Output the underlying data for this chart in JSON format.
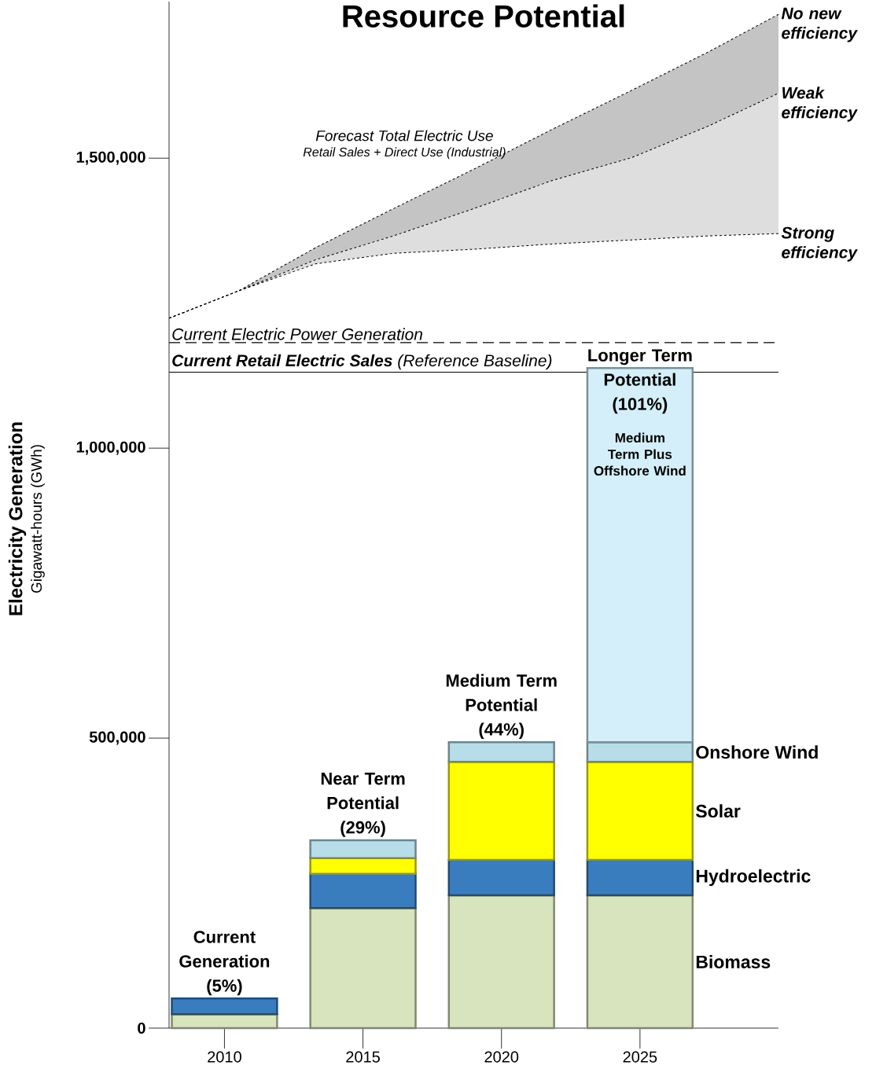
{
  "chart_data": {
    "type": "bar",
    "title": "Resource Potential",
    "ylabel": "Electricity Generation",
    "x": [
      2010,
      2015,
      2020,
      2025
    ],
    "series": [
      {
        "name": "No new efficiency",
        "type": "line",
        "color": "#000000",
        "line_style": "dashed",
        "x": [
          2008,
          2010.5,
          2013.3,
          2016.1,
          2019,
          2021.8,
          2024.7,
          2027.5,
          2030
        ],
        "values": [
          1224000,
          1271000,
          1346000,
          1413000,
          1481000,
          1549000,
          1617000,
          1684000,
          1748000
        ]
      },
      {
        "name": "Weak efficiency",
        "type": "line",
        "color": "#000000",
        "line_style": "dashed",
        "x": [
          2008,
          2010.5,
          2013.3,
          2016.1,
          2019,
          2021.8,
          2024.7,
          2027.5,
          2030
        ],
        "values": [
          1224000,
          1271000,
          1325000,
          1366000,
          1413000,
          1461000,
          1501000,
          1556000,
          1612000
        ]
      },
      {
        "name": "Strong efficiency",
        "type": "line",
        "color": "#000000",
        "line_style": "dashed",
        "x": [
          2008,
          2010.5,
          2013.3,
          2016.1,
          2019,
          2021.8,
          2024.7,
          2027.5,
          2030
        ],
        "values": [
          1224000,
          1271000,
          1318000,
          1336000,
          1343000,
          1352000,
          1359000,
          1366000,
          1370000
        ]
      },
      {
        "name": "Biomass",
        "color": "#d7e4bd",
        "values": [
          24000,
          207000,
          229000,
          229000
        ]
      },
      {
        "name": "Hydroelectric",
        "color": "#3a7dbf",
        "values": [
          27000,
          59000,
          61000,
          61000
        ]
      },
      {
        "name": "Solar",
        "color": "#ffff00",
        "values": [
          null,
          27000,
          169000,
          169000
        ]
      },
      {
        "name": "Onshore Wind",
        "color": "#b7dde8",
        "values": [
          null,
          31000,
          34000,
          34000
        ]
      },
      {
        "color": "#d4eff9",
        "values": [
          null,
          null,
          null,
          645000
        ]
      }
    ],
    "xlim": [
      2008,
      2030
    ],
    "ylim": [
      0,
      1770000
    ],
    "xticks": [
      2010,
      2015,
      2020,
      2025
    ],
    "yticks": [
      0,
      {
        "value": 500000,
        "label": "500,000"
      },
      {
        "value": 1000000,
        "label": "1,000,000"
      },
      {
        "value": 1500000,
        "label": "1,500,000"
      }
    ],
    "ref_lines": [
      {
        "axis": "y",
        "value": 1182000,
        "label": "Current Electric Power Generation",
        "line_style": "dashed"
      },
      {
        "axis": "y",
        "value": 1131000,
        "label": "**Current Retail Electric Sales** (Reference Baseline)",
        "line_style": "solid"
      }
    ],
    "annotations": [
      "Current Generation (5%)",
      "Near Term Potential (29%)",
      "Medium Term Potential (44%)",
      "Longer Term Potential (101%)",
      "Medium Term Plus Offshore Wind",
      "Forecast Total Electric Use",
      "Retail Sales + Direct Use (Industrial)",
      "Gigawatt-hours (GWh)"
    ],
    "stacked": true,
    "grid": false
  }
}
